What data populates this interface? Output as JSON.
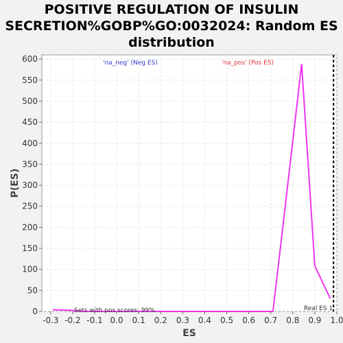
{
  "chart_data": {
    "type": "line",
    "title_lines": [
      "POSITIVE REGULATION OF INSULIN",
      "SECRETION%GOBP%GO:0032024: Random ES",
      "distribution"
    ],
    "xlabel": "ES",
    "ylabel": "P(ES)",
    "xlim": [
      -0.34,
      1.0
    ],
    "ylim": [
      0,
      610
    ],
    "xticks": [
      "-0.3",
      "-0.2",
      "-0.1",
      "0.0",
      "0.1",
      "0.2",
      "0.3",
      "0.4",
      "0.5",
      "0.6",
      "0.7",
      "0.8",
      "0.9",
      "1.0"
    ],
    "yticks": [
      "0",
      "50",
      "100",
      "150",
      "200",
      "250",
      "300",
      "350",
      "400",
      "450",
      "500",
      "550",
      "600"
    ],
    "grid": true,
    "series": [
      {
        "color": "#ee33ee",
        "x": [
          -0.29,
          -0.21,
          -0.15,
          0.2,
          0.5,
          0.7,
          0.71,
          0.77,
          0.84,
          0.9,
          0.97
        ],
        "y": [
          4,
          3,
          0,
          0,
          0,
          0,
          0,
          270,
          588,
          108,
          31
        ]
      }
    ],
    "legend": [
      {
        "label": "'na_neg' (Neg ES)",
        "color": "#3333cc"
      },
      {
        "label": "'na_pos' (Pos ES)",
        "color": "#dd3333"
      }
    ],
    "real_es": {
      "x": 0.985,
      "label": "Real ES 1"
    },
    "annotation": "Sets with pos scores: 99%"
  }
}
